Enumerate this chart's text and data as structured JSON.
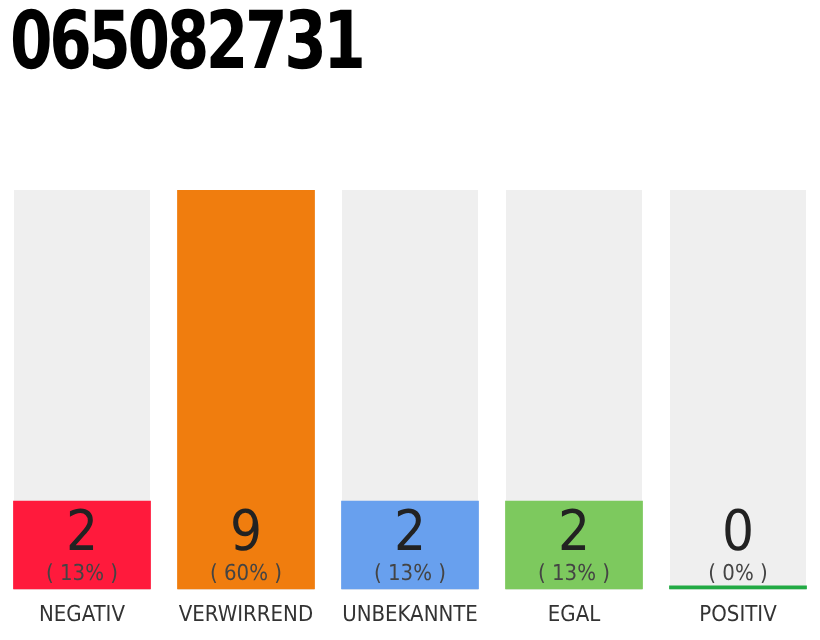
{
  "chart_data": {
    "type": "bar",
    "title": "065082731",
    "categories": [
      "NEGATIV",
      "VERWIRREND",
      "UNBEKANNTE",
      "EGAL",
      "POSITIV"
    ],
    "values": [
      2,
      9,
      2,
      2,
      0
    ],
    "colors": [
      "#ff1a3c",
      "#f07d0e",
      "#68a0ee",
      "#7dc95e",
      "#22aa44"
    ],
    "ylim": [
      0,
      9
    ],
    "tick_labels": "x",
    "grid": false,
    "legend": false,
    "data_labels": true,
    "annotations": [
      "( 13% )",
      "( 60% )",
      "( 13% )",
      "( 13% )",
      "( 0% )"
    ]
  }
}
